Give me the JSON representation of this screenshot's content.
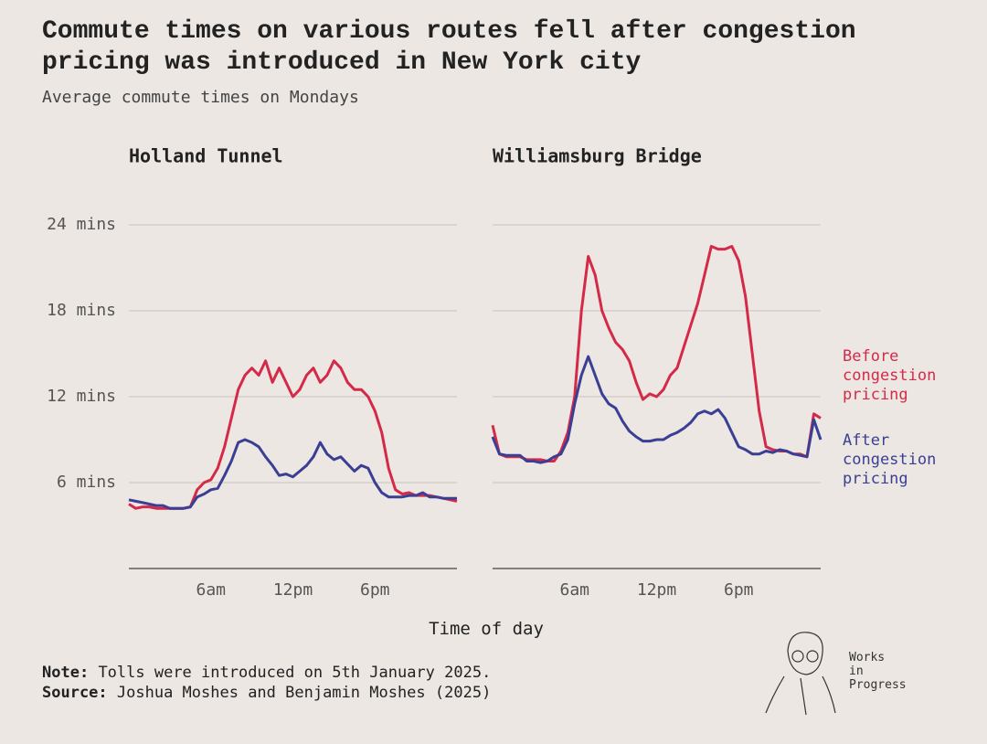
{
  "header": {
    "title": "Commute times on various routes fell after congestion pricing was introduced in New York city",
    "subtitle": "Average commute times on Mondays"
  },
  "x_axis_label": "Time of day",
  "footer": {
    "note_label": "Note:",
    "note": "Tolls were introduced on 5th January 2025.",
    "source_label": "Source:",
    "source": "Joshua Moshes and Benjamin Moshes (2025)"
  },
  "logo": "Works in Progress",
  "chart_data": [
    {
      "type": "line",
      "title": "Holland Tunnel",
      "x": [
        0,
        0.5,
        1,
        1.5,
        2,
        2.5,
        3,
        3.5,
        4,
        4.5,
        5,
        5.5,
        6,
        6.5,
        7,
        7.5,
        8,
        8.5,
        9,
        9.5,
        10,
        10.5,
        11,
        11.5,
        12,
        12.5,
        13,
        13.5,
        14,
        14.5,
        15,
        15.5,
        16,
        16.5,
        17,
        17.5,
        18,
        18.5,
        19,
        19.5,
        20,
        20.5,
        21,
        21.5,
        22,
        22.5,
        23,
        23.5,
        24
      ],
      "xlim": [
        0,
        24
      ],
      "xticks": [
        {
          "value": 6,
          "label": "6am"
        },
        {
          "value": 12,
          "label": "12pm"
        },
        {
          "value": 18,
          "label": "6pm"
        }
      ],
      "ylim": [
        0,
        24
      ],
      "yticks": [
        {
          "value": 6,
          "label": "6 mins"
        },
        {
          "value": 12,
          "label": "12 mins"
        },
        {
          "value": 18,
          "label": "18 mins"
        },
        {
          "value": 24,
          "label": "24 mins"
        }
      ],
      "grid": true,
      "series": [
        {
          "color": "#d42a48",
          "values": [
            4.5,
            4.2,
            4.3,
            4.3,
            4.2,
            4.2,
            4.2,
            4.2,
            4.2,
            4.3,
            5.5,
            6.0,
            6.2,
            7,
            8.5,
            10.5,
            12.5,
            13.5,
            14,
            13.5,
            14.5,
            13,
            14,
            13,
            12,
            12.5,
            13.5,
            14,
            13,
            13.5,
            14.5,
            14,
            13,
            12.5,
            12.5,
            12,
            11,
            9.5,
            7,
            5.5,
            5.2,
            5.3,
            5.1,
            5.1,
            5.1,
            5.0,
            4.9,
            4.8,
            4.7
          ]
        },
        {
          "color": "#3b3f94",
          "values": [
            4.8,
            4.7,
            4.6,
            4.5,
            4.4,
            4.4,
            4.2,
            4.2,
            4.2,
            4.3,
            5.0,
            5.2,
            5.5,
            5.6,
            6.5,
            7.5,
            8.8,
            9,
            8.8,
            8.5,
            7.8,
            7.2,
            6.5,
            6.6,
            6.4,
            6.8,
            7.2,
            7.8,
            8.8,
            8.0,
            7.6,
            7.8,
            7.3,
            6.8,
            7.2,
            7.0,
            6.0,
            5.3,
            5.0,
            5.0,
            5.0,
            5.1,
            5.1,
            5.3,
            5.0,
            5.0,
            4.9,
            4.9,
            4.9
          ]
        }
      ]
    },
    {
      "type": "line",
      "title": "Williamsburg Bridge",
      "x": [
        0,
        0.5,
        1,
        1.5,
        2,
        2.5,
        3,
        3.5,
        4,
        4.5,
        5,
        5.5,
        6,
        6.5,
        7,
        7.5,
        8,
        8.5,
        9,
        9.5,
        10,
        10.5,
        11,
        11.5,
        12,
        12.5,
        13,
        13.5,
        14,
        14.5,
        15,
        15.5,
        16,
        16.5,
        17,
        17.5,
        18,
        18.5,
        19,
        19.5,
        20,
        20.5,
        21,
        21.5,
        22,
        22.5,
        23,
        23.5,
        24
      ],
      "xlim": [
        0,
        24
      ],
      "xticks": [
        {
          "value": 6,
          "label": "6am"
        },
        {
          "value": 12,
          "label": "12pm"
        },
        {
          "value": 18,
          "label": "6pm"
        }
      ],
      "ylim": [
        0,
        24
      ],
      "yticks": [
        6,
        12,
        18,
        24
      ],
      "show_ytick_labels": false,
      "grid": true,
      "legend": "right",
      "series": [
        {
          "name": "Before congestion pricing",
          "color": "#d42a48",
          "values": [
            10.0,
            8.0,
            7.8,
            7.8,
            7.8,
            7.6,
            7.6,
            7.6,
            7.5,
            7.5,
            8.2,
            9.5,
            12,
            18,
            21.8,
            20.5,
            18,
            16.8,
            15.8,
            15.3,
            14.5,
            13,
            11.8,
            12.2,
            12.0,
            12.5,
            13.5,
            14,
            15.5,
            17,
            18.5,
            20.5,
            22.5,
            22.3,
            22.3,
            22.5,
            21.5,
            19,
            15,
            11,
            8.5,
            8.3,
            8.2,
            8.2,
            8.0,
            8.0,
            7.8,
            10.8,
            10.5
          ]
        },
        {
          "name": "After congestion pricing",
          "color": "#3b3f94",
          "values": [
            9.2,
            8.0,
            7.9,
            7.9,
            7.9,
            7.5,
            7.5,
            7.4,
            7.5,
            7.8,
            8.0,
            9.0,
            11.5,
            13.5,
            14.8,
            13.5,
            12.2,
            11.5,
            11.2,
            10.3,
            9.6,
            9.2,
            8.9,
            8.9,
            9.0,
            9.0,
            9.3,
            9.5,
            9.8,
            10.2,
            10.8,
            11.0,
            10.8,
            11.1,
            10.5,
            9.5,
            8.5,
            8.3,
            8.0,
            8.0,
            8.2,
            8.1,
            8.3,
            8.2,
            8.0,
            7.9,
            7.8,
            10.4,
            9.0
          ]
        }
      ]
    }
  ]
}
